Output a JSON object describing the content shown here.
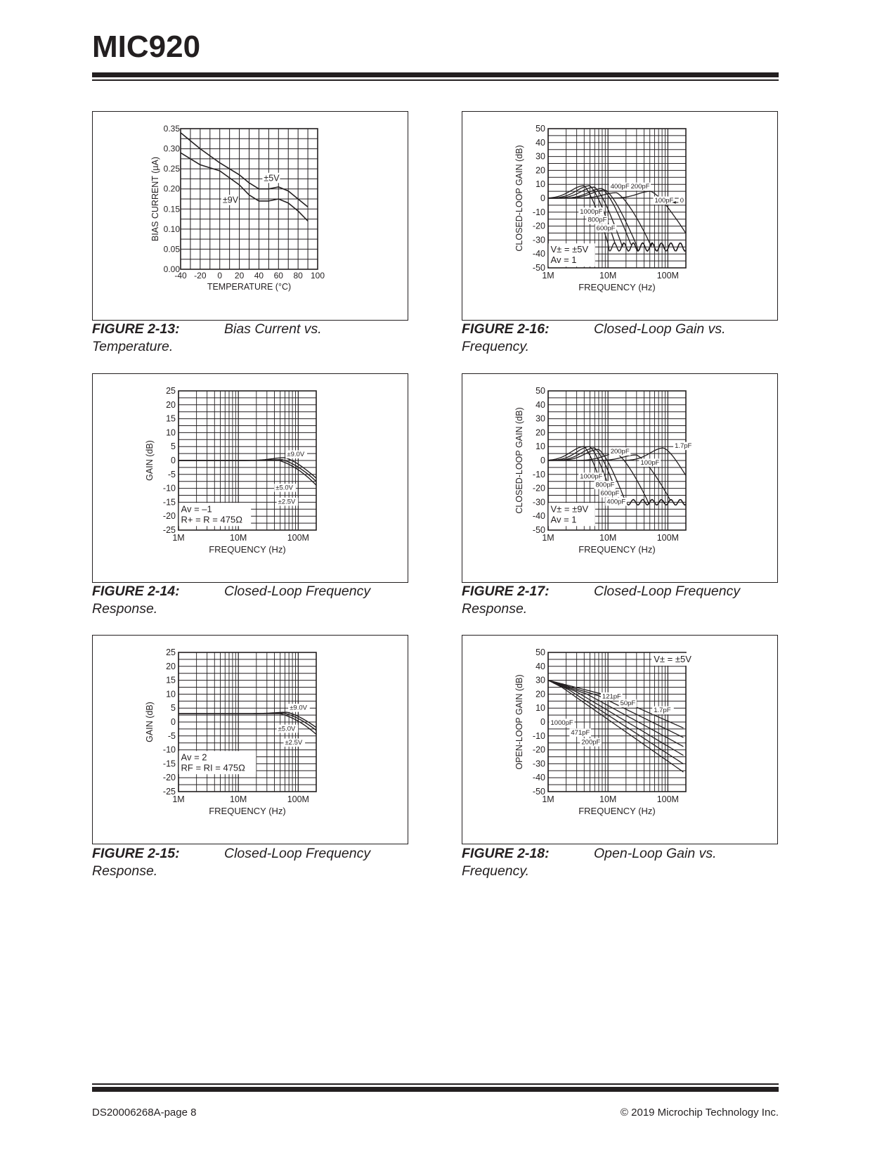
{
  "header": {
    "title": "MIC920"
  },
  "footer": {
    "left": "DS20006268A-page 8",
    "right": "© 2019 Microchip Technology Inc."
  },
  "figures": [
    {
      "id": "2-13",
      "caption_num": "FIGURE 2-13:",
      "caption_text": "Bias Current vs.",
      "caption_cont": "Temperature.",
      "chart_data": {
        "type": "line",
        "xlabel": "TEMPERATURE (°C)",
        "ylabel": "BIAS CURRENT (µA)",
        "xlim": [
          -40,
          100
        ],
        "ylim": [
          0.0,
          0.35
        ],
        "xticks": [
          "-40",
          "-20",
          "0",
          "20",
          "40",
          "60",
          "80",
          "100"
        ],
        "yticks": [
          "0.00",
          "0.05",
          "0.10",
          "0.15",
          "0.20",
          "0.25",
          "0.30",
          "0.35"
        ],
        "series": [
          {
            "name": "±5V",
            "x": [
              -40,
              -20,
              0,
              20,
              30,
              40,
              50,
              60,
              70,
              80,
              90
            ],
            "y": [
              0.34,
              0.3,
              0.265,
              0.235,
              0.215,
              0.2,
              0.2,
              0.205,
              0.195,
              0.175,
              0.155
            ]
          },
          {
            "name": "±9V",
            "x": [
              -40,
              -20,
              0,
              20,
              30,
              40,
              50,
              60,
              70,
              80,
              90
            ],
            "y": [
              0.29,
              0.26,
              0.245,
              0.21,
              0.185,
              0.17,
              0.17,
              0.175,
              0.165,
              0.145,
              0.12
            ]
          }
        ]
      }
    },
    {
      "id": "2-16",
      "caption_num": "FIGURE 2-16:",
      "caption_text": "Closed-Loop Gain vs.",
      "caption_cont": "Frequency.",
      "chart_data": {
        "type": "line",
        "xlabel": "FREQUENCY (Hz)",
        "ylabel": "CLOSED-LOOP GAIN (dB)",
        "x_scale": "log",
        "xlim": [
          1000000,
          200000000
        ],
        "ylim": [
          -50,
          50
        ],
        "xticks": [
          "1M",
          "10M",
          "100M"
        ],
        "yticks": [
          "-50",
          "-40",
          "-30",
          "-20",
          "-10",
          "0",
          "10",
          "20",
          "30",
          "40",
          "50"
        ],
        "annotation": [
          "V± = ±5V",
          "Av = 1"
        ],
        "labels": [
          "400pF",
          "200pF",
          "100pF",
          "0",
          "1000pF",
          "800pF",
          "600pF"
        ]
      }
    },
    {
      "id": "2-14",
      "caption_num": "FIGURE 2-14:",
      "caption_text": "Closed-Loop Frequency",
      "caption_cont": "Response.",
      "chart_data": {
        "type": "line",
        "xlabel": "FREQUENCY (Hz)",
        "ylabel": "GAIN (dB)",
        "x_scale": "log",
        "xlim": [
          1000000,
          200000000
        ],
        "ylim": [
          -25,
          25
        ],
        "xticks": [
          "1M",
          "10M",
          "100M"
        ],
        "yticks": [
          "-25",
          "-20",
          "-15",
          "-10",
          "-5",
          "0",
          "5",
          "10",
          "15",
          "20",
          "25"
        ],
        "annotation": [
          "Av = –1",
          "R+ = R = 475Ω"
        ],
        "labels": [
          "±9.0V",
          "±5.0V",
          "±2.5V"
        ]
      }
    },
    {
      "id": "2-17",
      "caption_num": "FIGURE 2-17:",
      "caption_text": "Closed-Loop Frequency",
      "caption_cont": "Response.",
      "chart_data": {
        "type": "line",
        "xlabel": "FREQUENCY (Hz)",
        "ylabel": "CLOSED-LOOP GAIN (dB)",
        "x_scale": "log",
        "xlim": [
          1000000,
          200000000
        ],
        "ylim": [
          -50,
          50
        ],
        "xticks": [
          "1M",
          "10M",
          "100M"
        ],
        "yticks": [
          "-50",
          "-40",
          "-30",
          "-20",
          "-10",
          "0",
          "10",
          "20",
          "30",
          "40",
          "50"
        ],
        "annotation": [
          "V± = ±9V",
          "Av = 1"
        ],
        "labels": [
          "200pF",
          "1.7pF",
          "100pF",
          "1000pF",
          "800pF",
          "600pF",
          "400pF"
        ]
      }
    },
    {
      "id": "2-15",
      "caption_num": "FIGURE 2-15:",
      "caption_text": "Closed-Loop Frequency",
      "caption_cont": "Response.",
      "chart_data": {
        "type": "line",
        "xlabel": "FREQUENCY (Hz)",
        "ylabel": "GAIN (dB)",
        "x_scale": "log",
        "xlim": [
          1000000,
          200000000
        ],
        "ylim": [
          -25,
          25
        ],
        "xticks": [
          "1M",
          "10M",
          "100M"
        ],
        "yticks": [
          "-25",
          "-20",
          "-15",
          "-10",
          "-5",
          "0",
          "5",
          "10",
          "15",
          "20",
          "25"
        ],
        "annotation": [
          "Av = 2",
          "RF = RI = 475Ω"
        ],
        "labels": [
          "±9.0V",
          "±5.0V",
          "±2.5V"
        ]
      }
    },
    {
      "id": "2-18",
      "caption_num": "FIGURE 2-18:",
      "caption_text": "Open-Loop Gain vs.",
      "caption_cont": "Frequency.",
      "chart_data": {
        "type": "line",
        "xlabel": "FREQUENCY (Hz)",
        "ylabel": "OPEN-LOOP GAIN (dB)",
        "x_scale": "log",
        "xlim": [
          1000000,
          200000000
        ],
        "ylim": [
          -50,
          50
        ],
        "xticks": [
          "1M",
          "10M",
          "100M"
        ],
        "yticks": [
          "-50",
          "-40",
          "-30",
          "-20",
          "-10",
          "0",
          "10",
          "20",
          "30",
          "40",
          "50"
        ],
        "annotation": [
          "V± = ±5V"
        ],
        "labels": [
          "121pF",
          "50pF",
          "1.7pF",
          "1000pF",
          "471pF",
          "200pF"
        ]
      }
    }
  ]
}
